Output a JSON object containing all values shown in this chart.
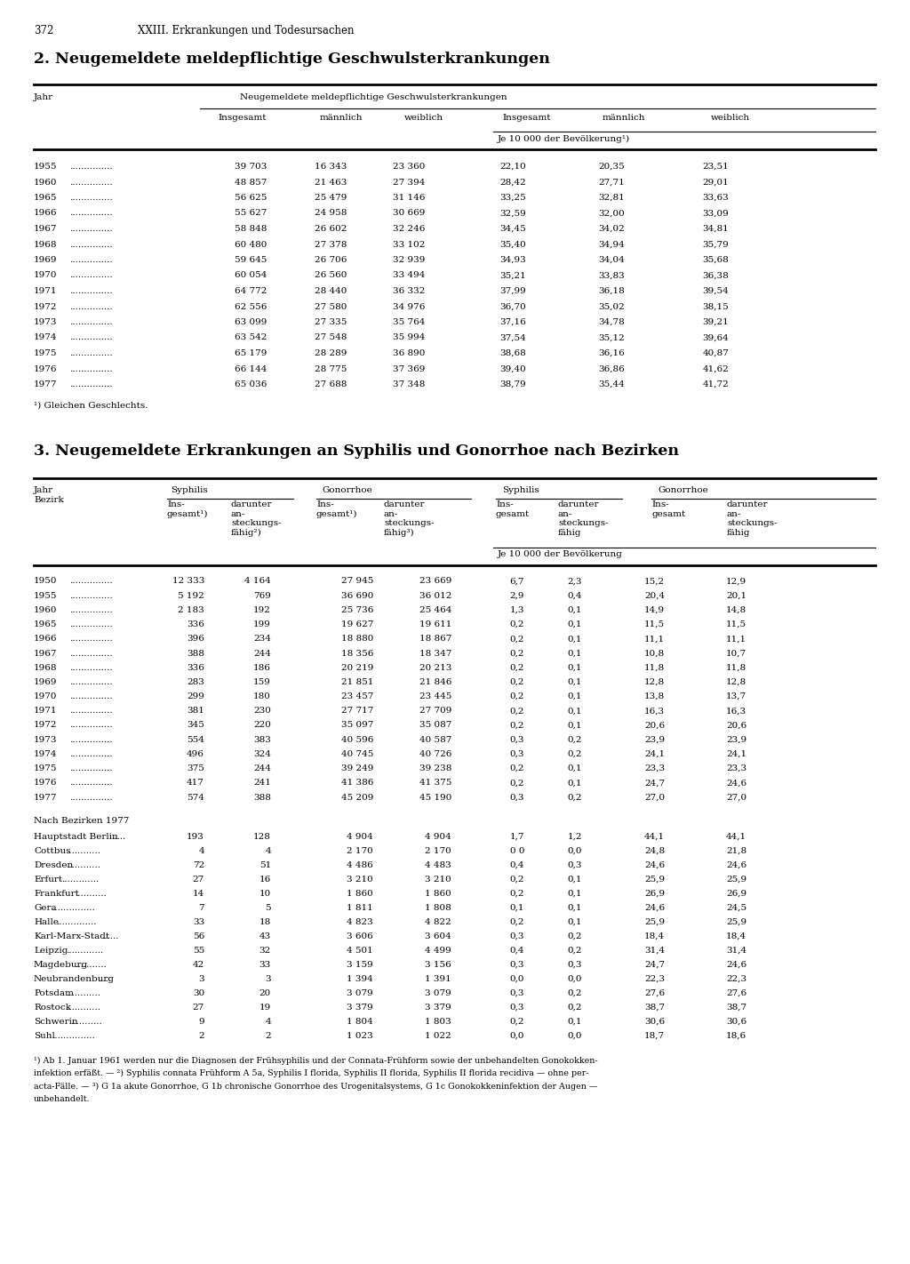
{
  "page_num": "372",
  "chapter": "XXIII. Erkrankungen und Todesursachen",
  "section1_title": "2. Neugemeldete meldepflichtige Geschwulsterkrankungen",
  "section1_footnote": "¹) Gleichen Geschlechts.",
  "section1_data": [
    [
      "1955",
      "39 703",
      "16 343",
      "23 360",
      "22,10",
      "20,35",
      "23,51"
    ],
    [
      "1960",
      "48 857",
      "21 463",
      "27 394",
      "28,42",
      "27,71",
      "29,01"
    ],
    [
      "1965",
      "56 625",
      "25 479",
      "31 146",
      "33,25",
      "32,81",
      "33,63"
    ],
    [
      "1966",
      "55 627",
      "24 958",
      "30 669",
      "32,59",
      "32,00",
      "33,09"
    ],
    [
      "1967",
      "58 848",
      "26 602",
      "32 246",
      "34,45",
      "34,02",
      "34,81"
    ],
    [
      "1968",
      "60 480",
      "27 378",
      "33 102",
      "35,40",
      "34,94",
      "35,79"
    ],
    [
      "1969",
      "59 645",
      "26 706",
      "32 939",
      "34,93",
      "34,04",
      "35,68"
    ],
    [
      "1970",
      "60 054",
      "26 560",
      "33 494",
      "35,21",
      "33,83",
      "36,38"
    ],
    [
      "1971",
      "64 772",
      "28 440",
      "36 332",
      "37,99",
      "36,18",
      "39,54"
    ],
    [
      "1972",
      "62 556",
      "27 580",
      "34 976",
      "36,70",
      "35,02",
      "38,15"
    ],
    [
      "1973",
      "63 099",
      "27 335",
      "35 764",
      "37,16",
      "34,78",
      "39,21"
    ],
    [
      "1974",
      "63 542",
      "27 548",
      "35 994",
      "37,54",
      "35,12",
      "39,64"
    ],
    [
      "1975",
      "65 179",
      "28 289",
      "36 890",
      "38,68",
      "36,16",
      "40,87"
    ],
    [
      "1976",
      "66 144",
      "28 775",
      "37 369",
      "39,40",
      "36,86",
      "41,62"
    ],
    [
      "1977",
      "65 036",
      "27 688",
      "37 348",
      "38,79",
      "35,44",
      "41,72"
    ]
  ],
  "section2_title": "3. Neugemeldete Erkrankungen an Syphilis und Gonorrhoe nach Bezirken",
  "section2_data_years": [
    [
      "1950",
      "12 333",
      "4 164",
      "27 945",
      "23 669",
      "6,7",
      "2,3",
      "15,2",
      "12,9"
    ],
    [
      "1955",
      "5 192",
      "769",
      "36 690",
      "36 012",
      "2,9",
      "0,4",
      "20,4",
      "20,1"
    ],
    [
      "1960",
      "2 183",
      "192",
      "25 736",
      "25 464",
      "1,3",
      "0,1",
      "14,9",
      "14,8"
    ],
    [
      "1965",
      "336",
      "199",
      "19 627",
      "19 611",
      "0,2",
      "0,1",
      "11,5",
      "11,5"
    ],
    [
      "1966",
      "396",
      "234",
      "18 880",
      "18 867",
      "0,2",
      "0,1",
      "11,1",
      "11,1"
    ],
    [
      "1967",
      "388",
      "244",
      "18 356",
      "18 347",
      "0,2",
      "0,1",
      "10,8",
      "10,7"
    ],
    [
      "1968",
      "336",
      "186",
      "20 219",
      "20 213",
      "0,2",
      "0,1",
      "11,8",
      "11,8"
    ],
    [
      "1969",
      "283",
      "159",
      "21 851",
      "21 846",
      "0,2",
      "0,1",
      "12,8",
      "12,8"
    ],
    [
      "1970",
      "299",
      "180",
      "23 457",
      "23 445",
      "0,2",
      "0,1",
      "13,8",
      "13,7"
    ],
    [
      "1971",
      "381",
      "230",
      "27 717",
      "27 709",
      "0,2",
      "0,1",
      "16,3",
      "16,3"
    ],
    [
      "1972",
      "345",
      "220",
      "35 097",
      "35 087",
      "0,2",
      "0,1",
      "20,6",
      "20,6"
    ],
    [
      "1973",
      "554",
      "383",
      "40 596",
      "40 587",
      "0,3",
      "0,2",
      "23,9",
      "23,9"
    ],
    [
      "1974",
      "496",
      "324",
      "40 745",
      "40 726",
      "0,3",
      "0,2",
      "24,1",
      "24,1"
    ],
    [
      "1975",
      "375",
      "244",
      "39 249",
      "39 238",
      "0,2",
      "0,1",
      "23,3",
      "23,3"
    ],
    [
      "1976",
      "417",
      "241",
      "41 386",
      "41 375",
      "0,2",
      "0,1",
      "24,7",
      "24,6"
    ],
    [
      "1977",
      "574",
      "388",
      "45 209",
      "45 190",
      "0,3",
      "0,2",
      "27,0",
      "27,0"
    ]
  ],
  "section2_bezirke_header": "Nach Bezirken 1977",
  "section2_data_bezirke": [
    [
      "Hauptstadt Berlin",
      ".....",
      "193",
      "128",
      "4 904",
      "4 904",
      "1,7",
      "1,2",
      "44,1",
      "44,1"
    ],
    [
      "Cottbus",
      "............",
      "4",
      "4",
      "2 170",
      "2 170",
      "0 0",
      "0,0",
      "24,8",
      "21,8"
    ],
    [
      "Dresden",
      "............",
      "72",
      "51",
      "4 486",
      "4 483",
      "0,4",
      "0,3",
      "24,6",
      "24,6"
    ],
    [
      "Erfurt",
      ".............",
      "27",
      "16",
      "3 210",
      "3 210",
      "0,2",
      "0,1",
      "25,9",
      "25,9"
    ],
    [
      "Frankfurt",
      "...........",
      "14",
      "10",
      "1 860",
      "1 860",
      "0,2",
      "0,1",
      "26,9",
      "26,9"
    ],
    [
      "Gera",
      "...............",
      "7",
      "5",
      "1 811",
      "1 808",
      "0,1",
      "0,1",
      "24,6",
      "24,5"
    ],
    [
      "Halle",
      "..............",
      "33",
      "18",
      "4 823",
      "4 822",
      "0,2",
      "0,1",
      "25,9",
      "25,9"
    ],
    [
      "Karl-Marx-Stadt",
      "......",
      "56",
      "43",
      "3 606",
      "3 604",
      "0,3",
      "0,2",
      "18,4",
      "18,4"
    ],
    [
      "Leipzig",
      ".............",
      "55",
      "32",
      "4 501",
      "4 499",
      "0,4",
      "0,2",
      "31,4",
      "31,4"
    ],
    [
      "Magdeburg",
      "...........",
      "42",
      "33",
      "3 159",
      "3 156",
      "0,3",
      "0,3",
      "24,7",
      "24,6"
    ],
    [
      "Neubrandenburg",
      ".....",
      "3",
      "3",
      "1 394",
      "1 391",
      "0,0",
      "0,0",
      "22,3",
      "22,3"
    ],
    [
      "Potsdam",
      "............",
      "30",
      "20",
      "3 079",
      "3 079",
      "0,3",
      "0,2",
      "27,6",
      "27,6"
    ],
    [
      "Rostock",
      "............",
      "27",
      "19",
      "3 379",
      "3 379",
      "0,3",
      "0,2",
      "38,7",
      "38,7"
    ],
    [
      "Schwerin",
      "...........",
      "9",
      "4",
      "1 804",
      "1 803",
      "0,2",
      "0,1",
      "30,6",
      "30,6"
    ],
    [
      "Suhl",
      "...............",
      "2",
      "2",
      "1 023",
      "1 022",
      "0,0",
      "0,0",
      "18,7",
      "18,6"
    ]
  ],
  "section2_footnotes": [
    "¹) Ab 1. Januar 1961 werden nur die Diagnosen der Frühsyphilis und der Connata-Frühform sowie der unbehandelten Gonokokken-",
    "infektion erfäßt. — ²) Syphilis connata Frühform A 5a, Syphilis I florida, Syphilis II florida, Syphilis II florida recidiva — ohne per-",
    "acta-Fälle. — ³) G 1a akute Gonorrhoe, G 1b chronische Gonorrhoe des Urogenitalsystems, G 1c Gonokokkeninfektion der Augen —",
    "unbehandelt."
  ]
}
